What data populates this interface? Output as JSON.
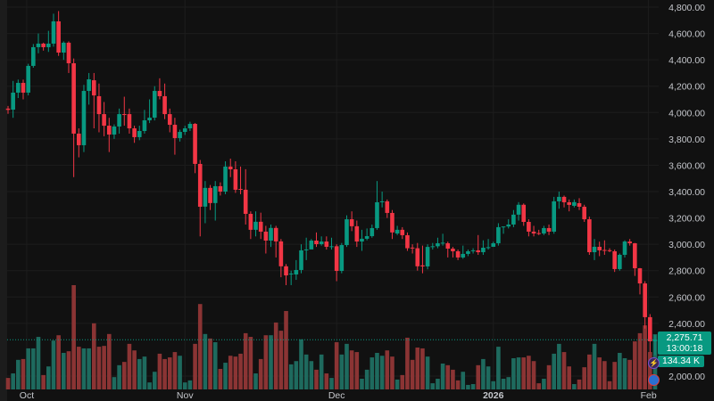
{
  "colors": {
    "background": "#111111",
    "grid": "#1d1d1d",
    "up": "#089981",
    "down": "#f23645",
    "volume_up": "#1e6a5e",
    "volume_down": "#8b3434",
    "axis_text": "#c5c7cc",
    "last_price_line": "#089981"
  },
  "price_label": {
    "value": "2,275.71",
    "countdown": "13:00:18"
  },
  "volume_label": "134.34 K",
  "chart_data": {
    "type": "candlestick",
    "title": "",
    "y_axis": {
      "side": "right",
      "range": [
        2000,
        4800
      ],
      "ticks": [
        4800,
        4600,
        4400,
        4200,
        4000,
        3800,
        3600,
        3400,
        3200,
        3000,
        2800,
        2600,
        2400,
        2000
      ],
      "tick_labels": [
        "4,800.00",
        "4,600.00",
        "4,400.00",
        "4,200.00",
        "4,000.00",
        "3,800.00",
        "3,600.00",
        "3,400.00",
        "3,200.00",
        "3,000.00",
        "2,800.00",
        "2,600.00",
        "2,400.00",
        "2,000.00"
      ]
    },
    "x_axis": {
      "tick_labels": [
        {
          "label": "Oct",
          "index": 3.7
        },
        {
          "label": "Nov",
          "index": 35
        },
        {
          "label": "Dec",
          "index": 65
        },
        {
          "label": "2026",
          "index": 96
        },
        {
          "label": "Feb",
          "index": 126.7
        }
      ]
    },
    "grid": true,
    "last_price": 2275.71,
    "ohlc": [
      [
        4030,
        4050,
        3990,
        4020
      ],
      [
        4022,
        4240,
        3960,
        4151
      ],
      [
        4151,
        4250,
        4110,
        4225
      ],
      [
        4225,
        4250,
        4100,
        4151
      ],
      [
        4151,
        4370,
        4130,
        4354
      ],
      [
        4354,
        4520,
        4340,
        4496
      ],
      [
        4496,
        4600,
        4450,
        4523
      ],
      [
        4523,
        4530,
        4470,
        4496
      ],
      [
        4496,
        4620,
        4460,
        4523
      ],
      [
        4523,
        4750,
        4500,
        4692
      ],
      [
        4692,
        4770,
        4430,
        4455
      ],
      [
        4455,
        4540,
        4400,
        4530
      ],
      [
        4530,
        4540,
        4300,
        4374
      ],
      [
        4374,
        4410,
        3510,
        3840
      ],
      [
        3840,
        3880,
        3660,
        3752
      ],
      [
        3752,
        4210,
        3700,
        4164
      ],
      [
        4164,
        4300,
        4060,
        4252
      ],
      [
        4245,
        4300,
        3880,
        4130
      ],
      [
        4124,
        4220,
        3850,
        3988
      ],
      [
        3988,
        4080,
        3820,
        3900
      ],
      [
        3900,
        3960,
        3700,
        3833
      ],
      [
        3833,
        3910,
        3800,
        3894
      ],
      [
        3894,
        4030,
        3840,
        3988
      ],
      [
        3988,
        4120,
        3900,
        3985
      ],
      [
        3988,
        4030,
        3840,
        3880
      ],
      [
        3880,
        3900,
        3770,
        3813
      ],
      [
        3813,
        3900,
        3790,
        3860
      ],
      [
        3860,
        4020,
        3840,
        3941
      ],
      [
        3941,
        4100,
        3920,
        3961
      ],
      [
        3961,
        4200,
        3940,
        4164
      ],
      [
        4164,
        4260,
        4100,
        4124
      ],
      [
        4124,
        4220,
        3950,
        3988
      ],
      [
        3988,
        4030,
        3850,
        3907
      ],
      [
        3907,
        3960,
        3680,
        3806
      ],
      [
        3806,
        3870,
        3780,
        3853
      ],
      [
        3853,
        3900,
        3830,
        3880
      ],
      [
        3880,
        3930,
        3860,
        3914
      ],
      [
        3914,
        3920,
        3540,
        3610
      ],
      [
        3610,
        3640,
        3060,
        3285
      ],
      [
        3286,
        3480,
        3160,
        3428
      ],
      [
        3428,
        3450,
        3260,
        3313
      ],
      [
        3313,
        3480,
        3180,
        3441
      ],
      [
        3441,
        3470,
        3370,
        3400
      ],
      [
        3400,
        3630,
        3380,
        3590
      ],
      [
        3590,
        3650,
        3510,
        3569
      ],
      [
        3569,
        3630,
        3390,
        3414
      ],
      [
        3420,
        3590,
        3380,
        3414
      ],
      [
        3414,
        3570,
        3150,
        3231
      ],
      [
        3231,
        3250,
        3040,
        3110
      ],
      [
        3110,
        3250,
        3060,
        3171
      ],
      [
        3171,
        3240,
        3040,
        3096
      ],
      [
        3096,
        3140,
        2930,
        3028
      ],
      [
        3028,
        3150,
        2980,
        3124
      ],
      [
        3124,
        3140,
        2900,
        3022
      ],
      [
        3022,
        3040,
        2750,
        2833
      ],
      [
        2833,
        2850,
        2690,
        2764
      ],
      [
        2771,
        2800,
        2690,
        2778
      ],
      [
        2771,
        2880,
        2730,
        2805
      ],
      [
        2805,
        3000,
        2780,
        2954
      ],
      [
        2954,
        3050,
        2880,
        2961
      ],
      [
        2961,
        3040,
        2970,
        3028
      ],
      [
        3028,
        3090,
        2980,
        3001
      ],
      [
        3001,
        3060,
        2990,
        3021
      ],
      [
        3021,
        3060,
        2960,
        2981
      ],
      [
        2981,
        3050,
        2960,
        2985
      ],
      [
        2985,
        3000,
        2720,
        2798
      ],
      [
        2798,
        3010,
        2780,
        2994
      ],
      [
        2994,
        3220,
        2980,
        3190
      ],
      [
        3190,
        3250,
        3100,
        3137
      ],
      [
        3137,
        3180,
        2980,
        3021
      ],
      [
        3021,
        3110,
        2950,
        3042
      ],
      [
        3042,
        3120,
        3030,
        3062
      ],
      [
        3062,
        3150,
        3050,
        3123
      ],
      [
        3123,
        3480,
        3110,
        3319
      ],
      [
        3319,
        3400,
        3280,
        3326
      ],
      [
        3326,
        3340,
        3200,
        3238
      ],
      [
        3238,
        3260,
        3040,
        3090
      ],
      [
        3082,
        3140,
        3070,
        3110
      ],
      [
        3110,
        3130,
        3040,
        3069
      ],
      [
        3069,
        3090,
        2950,
        2970
      ],
      [
        2975,
        3000,
        2930,
        2970
      ],
      [
        2970,
        3010,
        2800,
        2833
      ],
      [
        2840,
        2990,
        2780,
        2832
      ],
      [
        2832,
        3000,
        2810,
        2980
      ],
      [
        2980,
        3010,
        2960,
        2985
      ],
      [
        2985,
        3050,
        2970,
        3008
      ],
      [
        3008,
        3080,
        2990,
        3012
      ],
      [
        3008,
        3020,
        2900,
        2967
      ],
      [
        2967,
        2980,
        2900,
        2947
      ],
      [
        2947,
        2960,
        2880,
        2900
      ],
      [
        2900,
        2990,
        2890,
        2927
      ],
      [
        2927,
        2960,
        2910,
        2947
      ],
      [
        2950,
        2970,
        2930,
        2954
      ],
      [
        2954,
        3070,
        2920,
        2940
      ],
      [
        2940,
        3030,
        2920,
        2974
      ],
      [
        2974,
        3040,
        2960,
        2978
      ],
      [
        2981,
        3020,
        2980,
        3008
      ],
      [
        3008,
        3160,
        2990,
        3130
      ],
      [
        3130,
        3135,
        3080,
        3135
      ],
      [
        3135,
        3190,
        3120,
        3150
      ],
      [
        3150,
        3260,
        3130,
        3225
      ],
      [
        3225,
        3320,
        3180,
        3300
      ],
      [
        3300,
        3310,
        3140,
        3170
      ],
      [
        3170,
        3190,
        3060,
        3096
      ],
      [
        3096,
        3140,
        3060,
        3082
      ],
      [
        3085,
        3110,
        3070,
        3082
      ],
      [
        3082,
        3140,
        3070,
        3123
      ],
      [
        3123,
        3150,
        3070,
        3096
      ],
      [
        3096,
        3360,
        3080,
        3326
      ],
      [
        3326,
        3400,
        3270,
        3360
      ],
      [
        3360,
        3370,
        3280,
        3319
      ],
      [
        3319,
        3340,
        3250,
        3299
      ],
      [
        3292,
        3340,
        3280,
        3320
      ],
      [
        3312,
        3350,
        3260,
        3285
      ],
      [
        3285,
        3300,
        3170,
        3190
      ],
      [
        3190,
        3210,
        2920,
        2940
      ],
      [
        2940,
        3040,
        2880,
        2981
      ],
      [
        2981,
        3020,
        2910,
        2954
      ],
      [
        2957,
        3030,
        2920,
        2954
      ],
      [
        2955,
        2970,
        2940,
        2954
      ],
      [
        2947,
        2960,
        2790,
        2812
      ],
      [
        2812,
        2930,
        2800,
        2920
      ],
      [
        2920,
        3030,
        2900,
        3021
      ],
      [
        3021,
        3040,
        2990,
        3008
      ],
      [
        3008,
        3010,
        2760,
        2818
      ],
      [
        2818,
        2820,
        2620,
        2703
      ],
      [
        2703,
        2720,
        2360,
        2447
      ],
      [
        2447,
        2470,
        2180,
        2264
      ],
      [
        2264,
        2310,
        2160,
        2275.71
      ]
    ],
    "volume_k": [
      28,
      39,
      72,
      74,
      100,
      100,
      128,
      35,
      56,
      119,
      132,
      89,
      93,
      254,
      104,
      100,
      100,
      161,
      104,
      106,
      135,
      30,
      59,
      67,
      111,
      95,
      74,
      80,
      17,
      43,
      87,
      74,
      78,
      91,
      82,
      17,
      22,
      111,
      208,
      135,
      124,
      115,
      50,
      65,
      82,
      80,
      87,
      137,
      128,
      39,
      74,
      132,
      132,
      163,
      143,
      191,
      61,
      69,
      122,
      85,
      69,
      48,
      85,
      39,
      28,
      115,
      85,
      111,
      95,
      91,
      26,
      48,
      78,
      89,
      82,
      95,
      80,
      24,
      35,
      126,
      72,
      102,
      100,
      80,
      15,
      26,
      63,
      59,
      48,
      22,
      43,
      11,
      13,
      59,
      74,
      56,
      20,
      104,
      26,
      30,
      76,
      78,
      78,
      82,
      69,
      15,
      26,
      59,
      87,
      111,
      91,
      56,
      13,
      24,
      54,
      85,
      111,
      78,
      69,
      20,
      67,
      89,
      76,
      72,
      117,
      137,
      156,
      91,
      134.34
    ]
  }
}
